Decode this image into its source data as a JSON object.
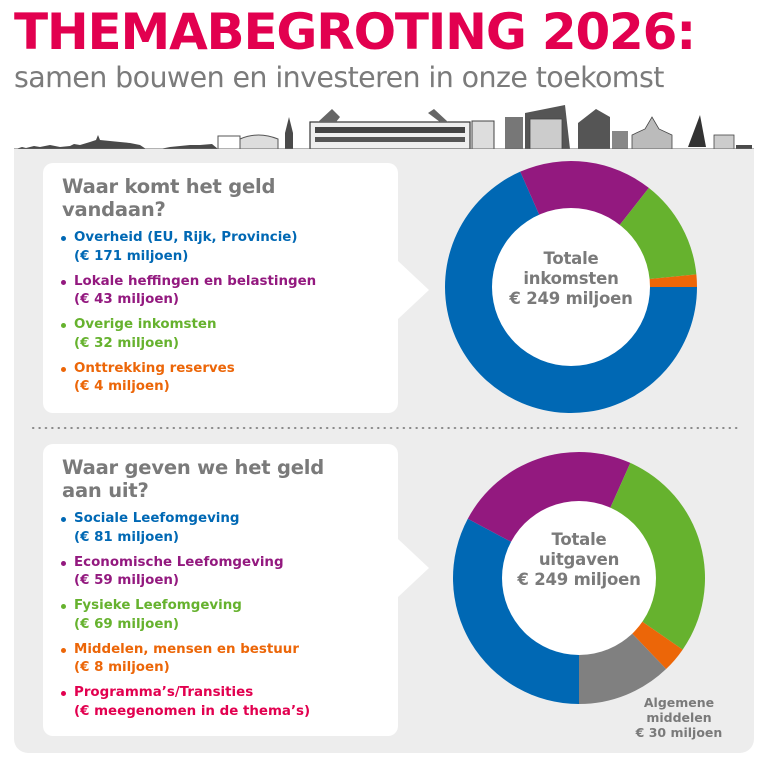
{
  "header": {
    "title": "THEMABEGROTING 2026:",
    "subtitle": "samen bouwen en investeren in onze toekomst",
    "skyline_icon": "city-skyline-illustration"
  },
  "colors": {
    "title": "#e2004f",
    "subtitle": "#7b7b7b",
    "heading": "#7a7a7a",
    "panel_bg": "#ededed",
    "blue": "#0068b4",
    "purple": "#93197f",
    "green": "#66b22e",
    "orange": "#ec6608",
    "pink": "#e2004f",
    "gray": "#808080"
  },
  "income": {
    "heading_line1": "Waar komt het geld",
    "heading_line2": "vandaan?",
    "items": [
      {
        "label": "Overheid (EU, Rijk, Provincie)",
        "amount": "(€ 171 miljoen)",
        "color": "#0068b4"
      },
      {
        "label": "Lokale heffingen en belastingen",
        "amount": "(€ 43 miljoen)",
        "color": "#93197f"
      },
      {
        "label": "Overige inkomsten",
        "amount": "(€ 32 miljoen)",
        "color": "#66b22e"
      },
      {
        "label": "Onttrekking reserves",
        "amount": "(€ 4 miljoen)",
        "color": "#ec6608"
      }
    ],
    "center_line1": "Totale",
    "center_line2": "inkomsten",
    "center_line3": "€ 249 miljoen"
  },
  "expenses": {
    "heading_line1": "Waar geven we het geld",
    "heading_line2": "aan uit?",
    "items": [
      {
        "label": "Sociale Leefomgeving",
        "amount": "(€ 81 miljoen)",
        "color": "#0068b4"
      },
      {
        "label": "Economische Leefomgeving",
        "amount": "(€ 59 miljoen)",
        "color": "#93197f"
      },
      {
        "label": "Fysieke Leefomgeving",
        "amount": "(€ 69 miljoen)",
        "color": "#66b22e"
      },
      {
        "label": "Middelen, mensen en bestuur",
        "amount": "(€ 8 miljoen)",
        "color": "#ec6608"
      },
      {
        "label": "Programma’s/Transities",
        "amount": "(€ meegenomen in de thema’s)",
        "color": "#e2004f"
      }
    ],
    "center_line1": "Totale",
    "center_line2": "uitgaven",
    "center_line3": "€ 249 miljoen",
    "callout_line1": "Algemene",
    "callout_line2": "middelen",
    "callout_line3": "€ 30 miljoen"
  },
  "chart_data": [
    {
      "type": "pie",
      "variant": "donut",
      "title": "Waar komt het geld vandaan?",
      "center_label": "Totale inkomsten € 249 miljoen",
      "unit": "€ miljoen",
      "total": 249,
      "start_angle_deg": 90,
      "direction": "clockwise",
      "categories": [
        "Overheid (EU, Rijk, Provincie)",
        "Lokale heffingen en belastingen",
        "Overige inkomsten",
        "Onttrekking reserves"
      ],
      "values": [
        171,
        43,
        32,
        4
      ],
      "colors": [
        "#0068b4",
        "#93197f",
        "#66b22e",
        "#ec6608"
      ]
    },
    {
      "type": "pie",
      "variant": "donut",
      "title": "Waar geven we het geld aan uit?",
      "center_label": "Totale uitgaven € 249 miljoen",
      "unit": "€ miljoen",
      "total": 249,
      "start_angle_deg": 180,
      "direction": "clockwise",
      "categories": [
        "Sociale Leefomgeving",
        "Economische Leefomgeving",
        "Fysieke Leefomgeving",
        "Middelen, mensen en bestuur",
        "Algemene middelen"
      ],
      "values": [
        81,
        59,
        69,
        8,
        30
      ],
      "colors": [
        "#0068b4",
        "#93197f",
        "#66b22e",
        "#ec6608",
        "#808080"
      ],
      "annotations": [
        "Algemene middelen € 30 miljoen"
      ],
      "note": "Programma’s/Transities (€ meegenomen in de thema’s)"
    }
  ]
}
